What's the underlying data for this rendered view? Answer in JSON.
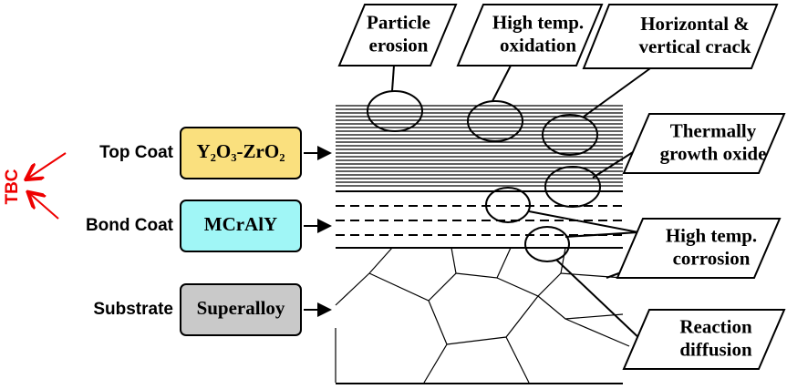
{
  "callouts": [
    {
      "lines": [
        "Particle",
        "erosion"
      ]
    },
    {
      "lines": [
        "High temp.",
        "oxidation"
      ]
    },
    {
      "lines": [
        "Horizontal &",
        "vertical crack"
      ]
    },
    {
      "lines": [
        "Thermally",
        "growth oxide"
      ]
    },
    {
      "lines": [
        "High temp.",
        "corrosion"
      ]
    },
    {
      "lines": [
        "Reaction",
        "diffusion"
      ]
    }
  ],
  "group_label": "TBC",
  "layers": [
    {
      "label": "Top Coat",
      "material": "Y₂O₃-ZrO₂"
    },
    {
      "label": "Bond Coat",
      "material": "MCrAlY"
    },
    {
      "label": "Substrate",
      "material": "Superalloy"
    }
  ]
}
